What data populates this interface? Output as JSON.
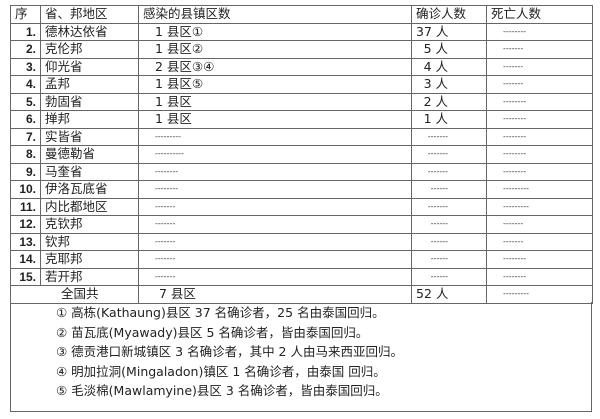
{
  "header": {
    "seq": "序",
    "province": "省、邦地区",
    "counties": "感染的县镇区数",
    "confirmed": "确诊人数",
    "deaths": "死亡人数"
  },
  "rows": [
    {
      "seq": "1.",
      "province": "德林达依省",
      "counties": "1 县区①",
      "confirmed": "37 人",
      "deaths": "--------"
    },
    {
      "seq": "2.",
      "province": "克伦邦",
      "counties": "1 县区②",
      "confirmed": "5 人",
      "deaths": "-------"
    },
    {
      "seq": "3.",
      "province": "仰光省",
      "counties": "2 县区③④",
      "confirmed": "4 人",
      "deaths": "-------"
    },
    {
      "seq": "4.",
      "province": "孟邦",
      "counties": "1 县区⑤",
      "confirmed": "3 人",
      "deaths": "-------"
    },
    {
      "seq": "5.",
      "province": " 勃固省",
      "counties": "1 县区",
      "confirmed": "2 人",
      "deaths": "--------"
    },
    {
      "seq": "6.",
      "province": "掸邦",
      "counties": "1 县区",
      "confirmed": "1 人",
      "deaths": "--------"
    },
    {
      "seq": "7.",
      "province": "实皆省",
      "counties": "---------",
      "confirmed": "-------",
      "deaths": "--------"
    },
    {
      "seq": "8.",
      "province": "曼德勒省",
      "counties": "----------",
      "confirmed": "-------",
      "deaths": "--------"
    },
    {
      "seq": "9.",
      "province": "马奎省",
      "counties": "--------",
      "confirmed": "-------",
      "deaths": "--------"
    },
    {
      "seq": "10.",
      "province": "伊洛瓦底省",
      "counties": "--------",
      "confirmed": "------",
      "deaths": "---------"
    },
    {
      "seq": "11.",
      "province": "内比都地区",
      "counties": "-------",
      "confirmed": "-------",
      "deaths": "---------"
    },
    {
      "seq": "12.",
      "province": "克钦邦",
      "counties": "-------",
      "confirmed": "------",
      "deaths": "-------"
    },
    {
      "seq": "13.",
      "province": "钦邦",
      "counties": "-------",
      "confirmed": "------",
      "deaths": "-------"
    },
    {
      "seq": "14.",
      "province": "克耶邦",
      "counties": "-------",
      "confirmed": "------",
      "deaths": "--------"
    },
    {
      "seq": "15.",
      "province": "若开邦",
      "counties": "-------",
      "confirmed": "------",
      "deaths": "--------"
    }
  ],
  "total": {
    "label": "全国共",
    "counties": "7 县区",
    "confirmed": "52 人",
    "deaths": "---------"
  },
  "notes": [
    "① 高栋(Kathaung)县区 37 名确诊者，25 名由泰国回归。",
    "② 苗瓦底(Myawady)县区 5 名确诊者，皆由泰国回归。",
    "③ 德贡港口新城镇区 3 名确诊者，其中 2 人由马来西亚回归。",
    "④ 明加拉洞(Mingaladon)镇区 1 名确诊者，由泰国 回归。",
    "⑤ 毛淡棉(Mawlamyine)县区 3 名确诊者，皆由泰国回归。"
  ]
}
